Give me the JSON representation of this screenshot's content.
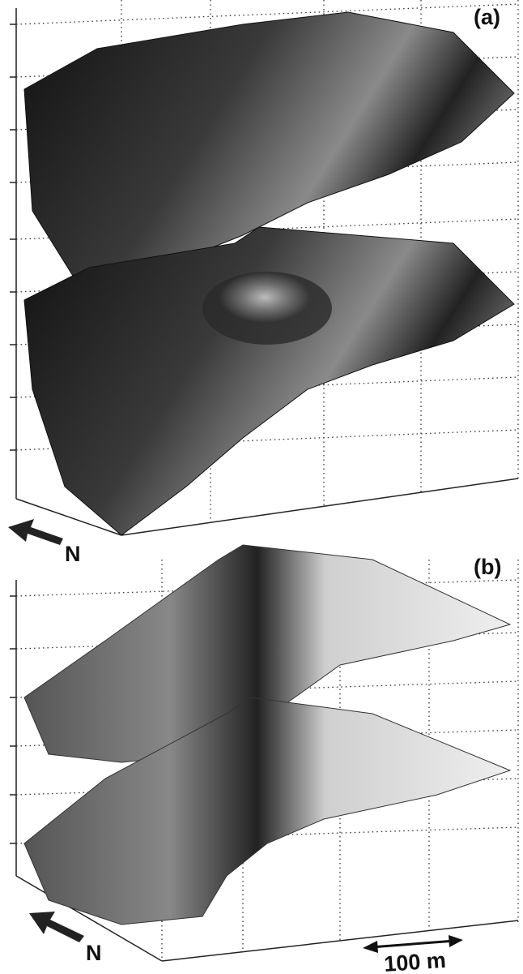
{
  "panels": [
    {
      "label": "(a)",
      "north": "N"
    },
    {
      "label": "(b)",
      "north": "N",
      "scale_bar": "100 m"
    }
  ]
}
